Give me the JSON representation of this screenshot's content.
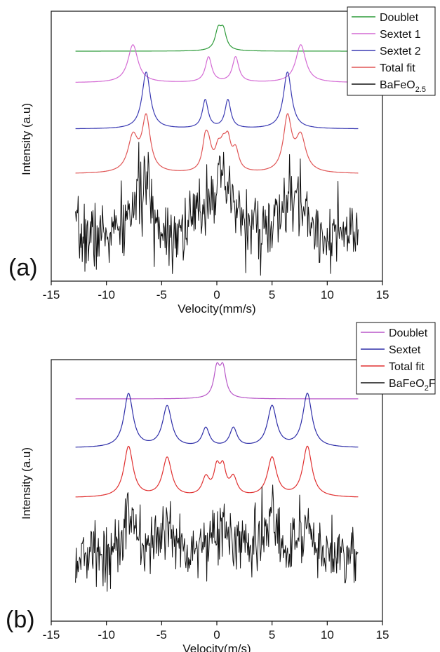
{
  "chart_data": [
    {
      "type": "line",
      "panel_label": "(a)",
      "xlabel": "Velocity(mm/s)",
      "ylabel": "Intensity (a.u)",
      "xlim": [
        -15,
        15
      ],
      "xticks": [
        -15,
        -10,
        -5,
        0,
        5,
        10,
        15
      ],
      "y_ticks_shown": false,
      "legend_position": "top-right",
      "data_x_range": [
        -12.8,
        12.8
      ],
      "series": [
        {
          "name": "Doublet",
          "color": "#2e9b3a",
          "kind": "fit",
          "baseline": 4.0,
          "peaks": [
            {
              "center": 0.12,
              "width": 0.33,
              "amplitude": 0.3
            },
            {
              "center": 0.58,
              "width": 0.33,
              "amplitude": 0.3
            }
          ]
        },
        {
          "name": "Sextet 1",
          "color": "#d46ad4",
          "kind": "fit",
          "baseline": 3.3,
          "peaks": [
            {
              "center": -7.6,
              "width": 0.55,
              "amplitude": 0.6
            },
            {
              "center": -0.75,
              "width": 0.35,
              "amplitude": 0.4
            },
            {
              "center": 1.7,
              "width": 0.35,
              "amplitude": 0.4
            },
            {
              "center": 7.6,
              "width": 0.55,
              "amplitude": 0.6
            }
          ]
        },
        {
          "name": "Sextet 2",
          "color": "#3b3bb3",
          "kind": "fit",
          "baseline": 2.3,
          "peaks": [
            {
              "center": -6.4,
              "width": 0.45,
              "amplitude": 0.9
            },
            {
              "center": -1.05,
              "width": 0.32,
              "amplitude": 0.45
            },
            {
              "center": 1.0,
              "width": 0.32,
              "amplitude": 0.45
            },
            {
              "center": 6.4,
              "width": 0.45,
              "amplitude": 0.9
            }
          ]
        },
        {
          "name": "Total fit",
          "color": "#e05555",
          "kind": "fit",
          "baseline": 1.2,
          "peaks": [
            {
              "center": -7.6,
              "width": 0.55,
              "amplitude": 0.55
            },
            {
              "center": -6.4,
              "width": 0.45,
              "amplitude": 0.85
            },
            {
              "center": -1.05,
              "width": 0.32,
              "amplitude": 0.42
            },
            {
              "center": -0.75,
              "width": 0.35,
              "amplitude": 0.32
            },
            {
              "center": 0.12,
              "width": 0.33,
              "amplitude": 0.3
            },
            {
              "center": 0.58,
              "width": 0.33,
              "amplitude": 0.3
            },
            {
              "center": 1.0,
              "width": 0.32,
              "amplitude": 0.42
            },
            {
              "center": 1.7,
              "width": 0.35,
              "amplitude": 0.32
            },
            {
              "center": 6.4,
              "width": 0.45,
              "amplitude": 0.85
            },
            {
              "center": 7.6,
              "width": 0.55,
              "amplitude": 0.55
            }
          ]
        },
        {
          "name": "BaFeO",
          "name_subscript": "2.5",
          "color": "#111111",
          "kind": "data",
          "baseline": 0.0,
          "noise": 0.28,
          "seed": 7,
          "peaks": [
            {
              "center": -7.4,
              "width": 0.7,
              "amplitude": 0.45
            },
            {
              "center": -6.4,
              "width": 0.5,
              "amplitude": 0.7
            },
            {
              "center": -0.5,
              "width": 1.2,
              "amplitude": 0.55
            },
            {
              "center": 0.8,
              "width": 1.2,
              "amplitude": 0.5
            },
            {
              "center": 6.4,
              "width": 0.7,
              "amplitude": 0.45
            },
            {
              "center": 7.6,
              "width": 0.7,
              "amplitude": 0.45
            }
          ]
        }
      ]
    },
    {
      "type": "line",
      "panel_label": "(b)",
      "xlabel": "Velocity(m/s)",
      "ylabel": "Intensity (a.u)",
      "xlim": [
        -15,
        15
      ],
      "xticks": [
        -15,
        -10,
        -5,
        0,
        5,
        10,
        15
      ],
      "y_ticks_shown": false,
      "legend_position": "top-right",
      "data_x_range": [
        -12.8,
        12.8
      ],
      "series": [
        {
          "name": "Doublet",
          "color": "#b857c8",
          "kind": "fit",
          "baseline": 3.3,
          "peaks": [
            {
              "center": 0.0,
              "width": 0.33,
              "amplitude": 0.45
            },
            {
              "center": 0.55,
              "width": 0.33,
              "amplitude": 0.45
            }
          ]
        },
        {
          "name": "Sextet",
          "color": "#2e2ea8",
          "kind": "fit",
          "baseline": 2.3,
          "peaks": [
            {
              "center": -8.0,
              "width": 0.5,
              "amplitude": 0.85
            },
            {
              "center": -4.5,
              "width": 0.5,
              "amplitude": 0.65
            },
            {
              "center": -1.0,
              "width": 0.4,
              "amplitude": 0.3
            },
            {
              "center": 1.5,
              "width": 0.4,
              "amplitude": 0.3
            },
            {
              "center": 5.0,
              "width": 0.5,
              "amplitude": 0.65
            },
            {
              "center": 8.2,
              "width": 0.5,
              "amplitude": 0.85
            }
          ]
        },
        {
          "name": "Total fit",
          "color": "#e03030",
          "kind": "fit",
          "baseline": 1.3,
          "peaks": [
            {
              "center": -8.0,
              "width": 0.5,
              "amplitude": 0.8
            },
            {
              "center": -4.5,
              "width": 0.5,
              "amplitude": 0.62
            },
            {
              "center": -1.0,
              "width": 0.4,
              "amplitude": 0.28
            },
            {
              "center": 0.0,
              "width": 0.33,
              "amplitude": 0.4
            },
            {
              "center": 0.55,
              "width": 0.33,
              "amplitude": 0.4
            },
            {
              "center": 1.5,
              "width": 0.4,
              "amplitude": 0.28
            },
            {
              "center": 5.0,
              "width": 0.5,
              "amplitude": 0.62
            },
            {
              "center": 8.2,
              "width": 0.5,
              "amplitude": 0.8
            }
          ]
        },
        {
          "name": "BaFeO",
          "name_subscript": "2",
          "name_suffix": "F",
          "color": "#111111",
          "kind": "data",
          "baseline": 0.0,
          "noise": 0.26,
          "seed": 13,
          "peaks": [
            {
              "center": -8.0,
              "width": 0.7,
              "amplitude": 0.55
            },
            {
              "center": -4.5,
              "width": 0.7,
              "amplitude": 0.45
            },
            {
              "center": 0.3,
              "width": 1.6,
              "amplitude": 0.4
            },
            {
              "center": 5.0,
              "width": 0.6,
              "amplitude": 0.6
            },
            {
              "center": 8.2,
              "width": 0.7,
              "amplitude": 0.45
            }
          ]
        }
      ]
    }
  ]
}
